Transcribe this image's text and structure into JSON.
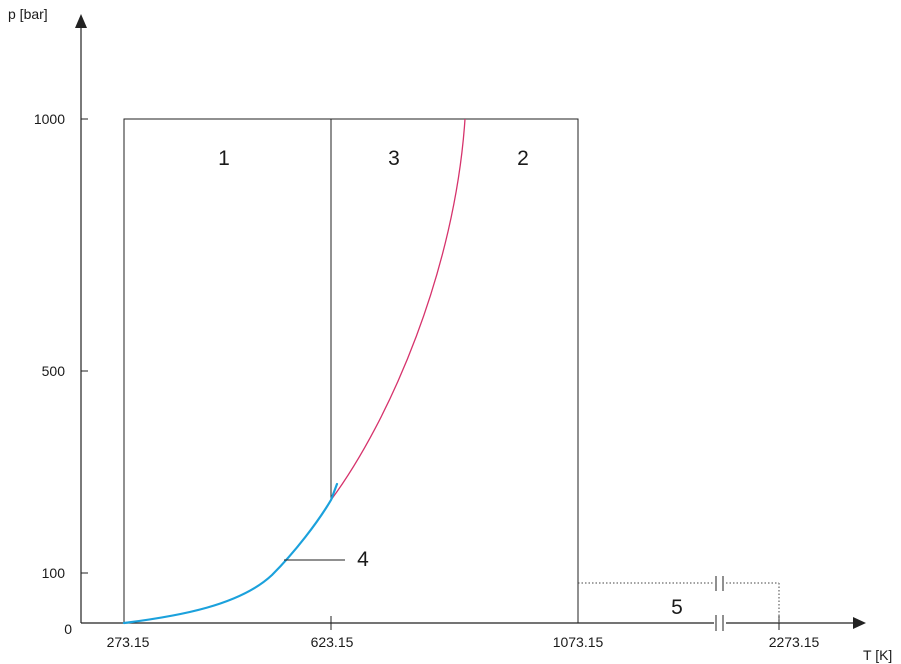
{
  "axes": {
    "y_label": "p [bar]",
    "x_label": "T [K]",
    "y_ticks": [
      "1000",
      "500",
      "100",
      "0"
    ],
    "x_ticks": [
      "273.15",
      "623.15",
      "1073.15",
      "2273.15"
    ]
  },
  "regions": {
    "r1": "1",
    "r2": "2",
    "r3": "3",
    "r4": "4",
    "r5": "5"
  },
  "colors": {
    "boundary_b23": "#d6336c",
    "saturation_line": "#1ba1dc",
    "frame": "#222222"
  }
}
